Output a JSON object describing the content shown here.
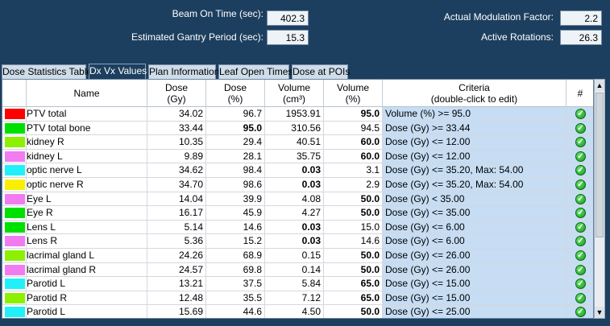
{
  "summary": {
    "beam_on_time_label": "Beam On Time (sec):",
    "beam_on_time_value": "402.3",
    "gantry_period_label": "Estimated Gantry Period (sec):",
    "gantry_period_value": "15.3",
    "modulation_label": "Actual Modulation Factor:",
    "modulation_value": "2.2",
    "rotations_label": "Active Rotations:",
    "rotations_value": "26.3"
  },
  "tabs": [
    {
      "label": "Dose Statistics Table",
      "active": false
    },
    {
      "label": "Dx Vx Values",
      "active": true
    },
    {
      "label": "Plan Information",
      "active": false
    },
    {
      "label": "Leaf Open Times",
      "active": false
    },
    {
      "label": "Dose at POIs",
      "active": false
    }
  ],
  "columns": {
    "name": "Name",
    "dose_gy": [
      "Dose",
      "(Gy)"
    ],
    "dose_pct": [
      "Dose",
      "(%)"
    ],
    "volume_cc": [
      "Volume",
      "(cm³)"
    ],
    "volume_pct": [
      "Volume",
      "(%)"
    ],
    "criteria": [
      "Criteria",
      "(double-click to edit)"
    ],
    "flag": "#"
  },
  "rows": [
    {
      "color": "#ff0000",
      "name": "PTV total",
      "dose_gy": "34.02",
      "dose_pct": "96.7",
      "volume_cc": "1953.91",
      "volume_pct": "95.0",
      "bold": "volume_pct",
      "criteria": "Volume (%) >= 95.0"
    },
    {
      "color": "#00e000",
      "name": "PTV total bone",
      "dose_gy": "33.44",
      "dose_pct": "95.0",
      "volume_cc": "310.56",
      "volume_pct": "94.5",
      "bold": "dose_pct",
      "criteria": "Dose (Gy) >= 33.44"
    },
    {
      "color": "#8df000",
      "name": "kidney R",
      "dose_gy": "10.35",
      "dose_pct": "29.4",
      "volume_cc": "40.51",
      "volume_pct": "60.0",
      "bold": "volume_pct",
      "criteria": "Dose (Gy) <= 12.00"
    },
    {
      "color": "#f07cf0",
      "name": "kidney L",
      "dose_gy": "9.89",
      "dose_pct": "28.1",
      "volume_cc": "35.75",
      "volume_pct": "60.0",
      "bold": "volume_pct",
      "criteria": "Dose (Gy) <= 12.00"
    },
    {
      "color": "#20f0f8",
      "name": "optic nerve L",
      "dose_gy": "34.62",
      "dose_pct": "98.4",
      "volume_cc": "0.03",
      "volume_pct": "3.1",
      "bold": "volume_cc",
      "criteria": "Dose (Gy) <= 35.20, Max: 54.00"
    },
    {
      "color": "#f8f000",
      "name": "optic nerve R",
      "dose_gy": "34.70",
      "dose_pct": "98.6",
      "volume_cc": "0.03",
      "volume_pct": "2.9",
      "bold": "volume_cc",
      "criteria": "Dose (Gy) <= 35.20, Max: 54.00"
    },
    {
      "color": "#f07cf0",
      "name": "Eye L",
      "dose_gy": "14.04",
      "dose_pct": "39.9",
      "volume_cc": "4.08",
      "volume_pct": "50.0",
      "bold": "volume_pct",
      "criteria": "Dose (Gy) < 35.00"
    },
    {
      "color": "#00e000",
      "name": "Eye R",
      "dose_gy": "16.17",
      "dose_pct": "45.9",
      "volume_cc": "4.27",
      "volume_pct": "50.0",
      "bold": "volume_pct",
      "criteria": "Dose (Gy) <= 35.00"
    },
    {
      "color": "#00e000",
      "name": "Lens L",
      "dose_gy": "5.14",
      "dose_pct": "14.6",
      "volume_cc": "0.03",
      "volume_pct": "15.0",
      "bold": "volume_cc",
      "criteria": "Dose (Gy) <= 6.00"
    },
    {
      "color": "#f07cf0",
      "name": "Lens R",
      "dose_gy": "5.36",
      "dose_pct": "15.2",
      "volume_cc": "0.03",
      "volume_pct": "14.6",
      "bold": "volume_cc",
      "criteria": "Dose (Gy) <= 6.00"
    },
    {
      "color": "#8df000",
      "name": "lacrimal gland L",
      "dose_gy": "24.26",
      "dose_pct": "68.9",
      "volume_cc": "0.15",
      "volume_pct": "50.0",
      "bold": "volume_pct",
      "criteria": "Dose (Gy) <= 26.00"
    },
    {
      "color": "#f07cf0",
      "name": "lacrimal gland R",
      "dose_gy": "24.57",
      "dose_pct": "69.8",
      "volume_cc": "0.14",
      "volume_pct": "50.0",
      "bold": "volume_pct",
      "criteria": "Dose (Gy) <= 26.00"
    },
    {
      "color": "#20f0f8",
      "name": "Parotid L",
      "dose_gy": "13.21",
      "dose_pct": "37.5",
      "volume_cc": "5.84",
      "volume_pct": "65.0",
      "bold": "volume_pct",
      "criteria": "Dose (Gy) <= 15.00"
    },
    {
      "color": "#8df000",
      "name": "Parotid R",
      "dose_gy": "12.48",
      "dose_pct": "35.5",
      "volume_cc": "7.12",
      "volume_pct": "65.0",
      "bold": "volume_pct",
      "criteria": "Dose (Gy) <= 15.00"
    },
    {
      "color": "#20f0f8",
      "name": "Parotid L",
      "dose_gy": "15.69",
      "dose_pct": "44.6",
      "volume_cc": "4.50",
      "volume_pct": "50.0",
      "bold": "volume_pct",
      "criteria": "Dose (Gy) <= 25.00"
    }
  ],
  "icons": {
    "pass": "check-circle-icon",
    "scroll_up": "arrow-up-icon",
    "scroll_down": "arrow-down-icon"
  },
  "colors": {
    "background": "#1d3f5f",
    "criteria_bg": "#c6ddf3"
  }
}
